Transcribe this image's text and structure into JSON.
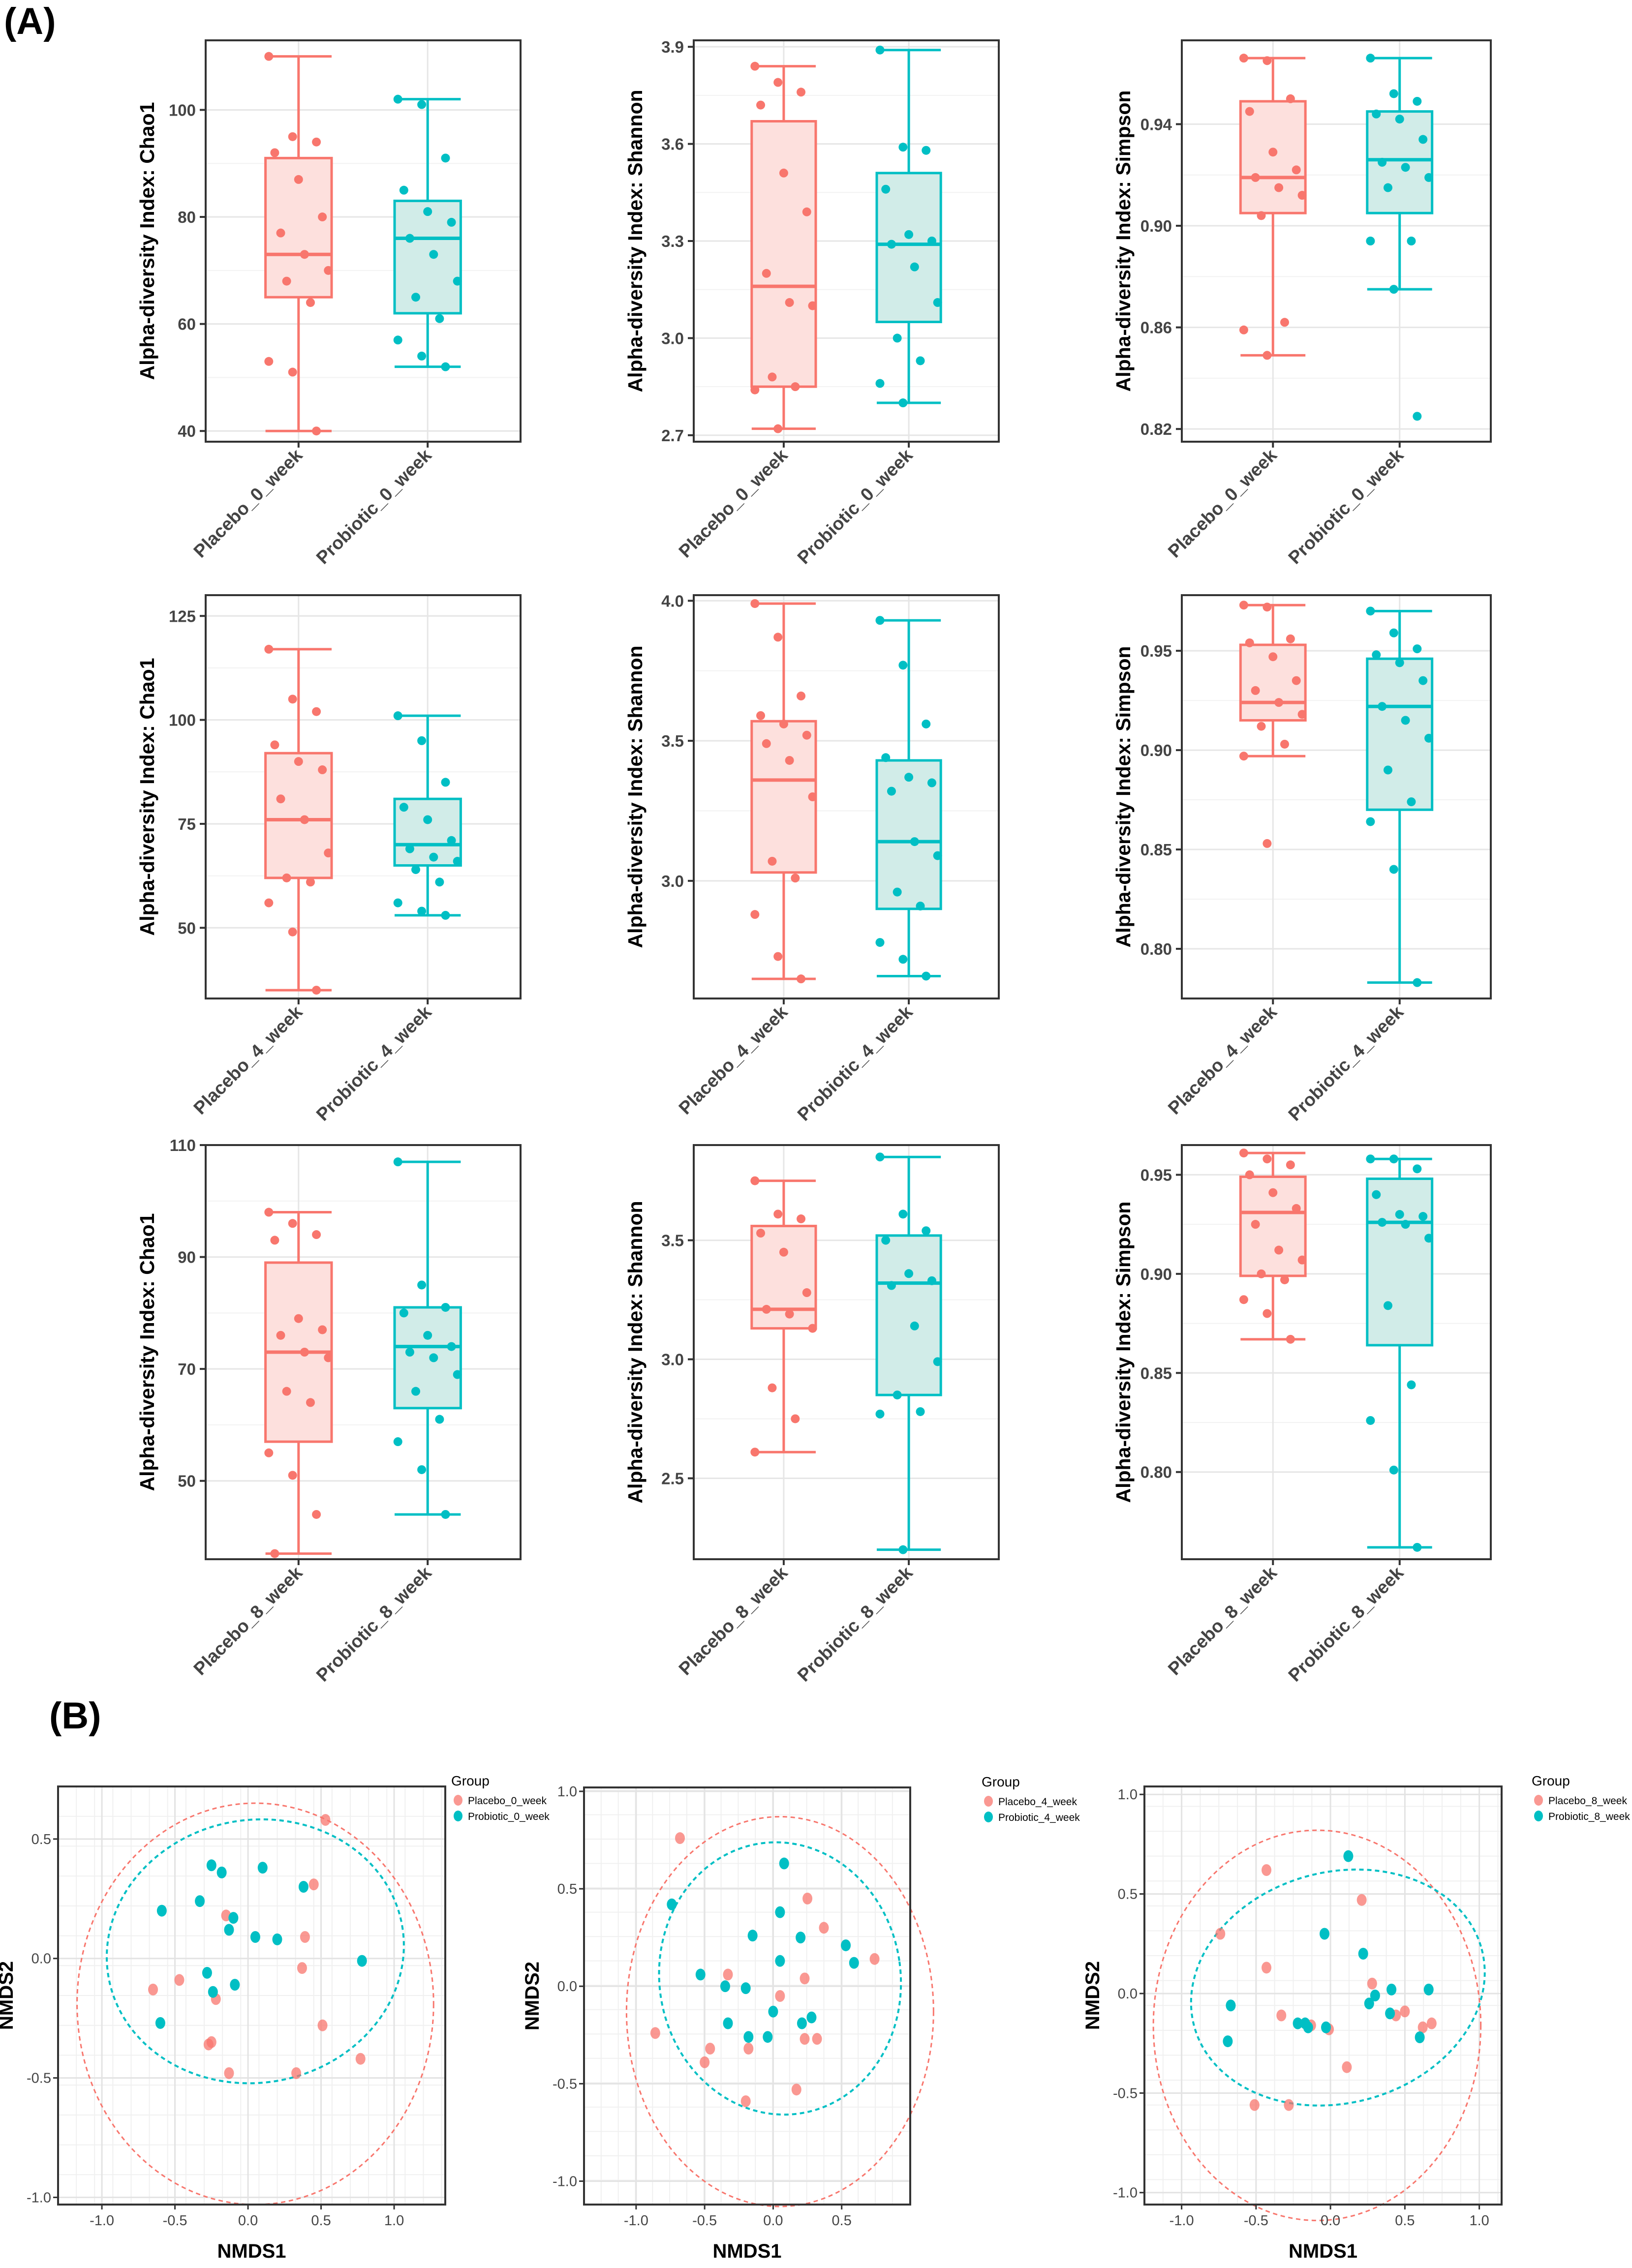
{
  "panels": {
    "a": "(A)",
    "b": "(B)"
  },
  "colors": {
    "placebo": "#F8766D",
    "probiotic": "#00BFC4",
    "placebo_fill": "#FDE0DD",
    "probiotic_fill": "#D1ECE8"
  },
  "chart_data": [
    {
      "type": "box",
      "title": "",
      "ylabel": "Alpha-diversity Index: Chao1",
      "ylim": [
        38,
        113
      ],
      "yticks": [
        40,
        60,
        80,
        100
      ],
      "categories": [
        "Placebo_0_week",
        "Probiotic_0_week"
      ],
      "boxes": [
        {
          "q1": 65,
          "median": 73,
          "q3": 91,
          "min": 40,
          "max": 110,
          "points": [
            110,
            95,
            94,
            92,
            87,
            80,
            77,
            73,
            70,
            68,
            64,
            53,
            51,
            40
          ]
        },
        {
          "q1": 62,
          "median": 76,
          "q3": 83,
          "min": 52,
          "max": 102,
          "points": [
            102,
            101,
            91,
            85,
            81,
            79,
            76,
            73,
            68,
            65,
            61,
            57,
            54,
            52
          ]
        }
      ]
    },
    {
      "type": "box",
      "title": "",
      "ylabel": "Alpha-diversity Index: Shannon",
      "ylim": [
        2.68,
        3.92
      ],
      "yticks": [
        2.7,
        3.0,
        3.3,
        3.6,
        3.9
      ],
      "categories": [
        "Placebo_0_week",
        "Probiotic_0_week"
      ],
      "boxes": [
        {
          "q1": 2.85,
          "median": 3.16,
          "q3": 3.67,
          "min": 2.72,
          "max": 3.84,
          "points": [
            3.84,
            3.79,
            3.76,
            3.72,
            3.51,
            3.39,
            3.2,
            3.11,
            3.1,
            2.88,
            2.85,
            2.84,
            2.72
          ]
        },
        {
          "q1": 3.05,
          "median": 3.29,
          "q3": 3.51,
          "min": 2.8,
          "max": 3.89,
          "points": [
            3.89,
            3.59,
            3.58,
            3.46,
            3.32,
            3.3,
            3.29,
            3.22,
            3.11,
            3.0,
            2.93,
            2.86,
            2.8
          ]
        }
      ]
    },
    {
      "type": "box",
      "title": "",
      "ylabel": "Alpha-diversity Index: Simpson",
      "ylim": [
        0.815,
        0.973
      ],
      "yticks": [
        0.82,
        0.86,
        0.9,
        0.94
      ],
      "categories": [
        "Placebo_0_week",
        "Probiotic_0_week"
      ],
      "boxes": [
        {
          "q1": 0.905,
          "median": 0.919,
          "q3": 0.949,
          "min": 0.849,
          "max": 0.966,
          "points": [
            0.966,
            0.965,
            0.95,
            0.945,
            0.929,
            0.922,
            0.919,
            0.915,
            0.912,
            0.904,
            0.862,
            0.859,
            0.849
          ]
        },
        {
          "q1": 0.905,
          "median": 0.926,
          "q3": 0.945,
          "min": 0.875,
          "max": 0.966,
          "points": [
            0.966,
            0.952,
            0.949,
            0.944,
            0.942,
            0.934,
            0.925,
            0.923,
            0.919,
            0.915,
            0.894,
            0.894,
            0.875,
            0.825
          ]
        }
      ]
    },
    {
      "type": "box",
      "title": "",
      "ylabel": "Alpha-diversity Index: Chao1",
      "ylim": [
        33,
        130
      ],
      "yticks": [
        50,
        75,
        100,
        125
      ],
      "categories": [
        "Placebo_4_week",
        "Probiotic_4_week"
      ],
      "boxes": [
        {
          "q1": 62,
          "median": 76,
          "q3": 92,
          "min": 35,
          "max": 117,
          "points": [
            117,
            105,
            102,
            94,
            90,
            88,
            81,
            76,
            68,
            62,
            61,
            56,
            49,
            35
          ]
        },
        {
          "q1": 65,
          "median": 70,
          "q3": 81,
          "min": 53,
          "max": 101,
          "points": [
            101,
            95,
            85,
            79,
            76,
            71,
            69,
            67,
            66,
            64,
            61,
            56,
            54,
            53
          ]
        }
      ]
    },
    {
      "type": "box",
      "title": "",
      "ylabel": "Alpha-diversity Index: Shannon",
      "ylim": [
        2.58,
        4.02
      ],
      "yticks": [
        3.0,
        3.5,
        4.0
      ],
      "categories": [
        "Placebo_4_week",
        "Probiotic_4_week"
      ],
      "boxes": [
        {
          "q1": 3.03,
          "median": 3.36,
          "q3": 3.57,
          "min": 2.65,
          "max": 3.99,
          "points": [
            3.99,
            3.87,
            3.66,
            3.59,
            3.56,
            3.52,
            3.49,
            3.43,
            3.3,
            3.07,
            3.01,
            2.88,
            2.73,
            2.65
          ]
        },
        {
          "q1": 2.9,
          "median": 3.14,
          "q3": 3.43,
          "min": 2.66,
          "max": 3.93,
          "points": [
            3.93,
            3.77,
            3.56,
            3.44,
            3.37,
            3.35,
            3.32,
            3.14,
            3.09,
            2.96,
            2.91,
            2.78,
            2.72,
            2.66
          ]
        }
      ]
    },
    {
      "type": "box",
      "title": "",
      "ylabel": "Alpha-diversity Index: Simpson",
      "ylim": [
        0.775,
        0.978
      ],
      "yticks": [
        0.8,
        0.85,
        0.9,
        0.95
      ],
      "categories": [
        "Placebo_4_week",
        "Probiotic_4_week"
      ],
      "boxes": [
        {
          "q1": 0.915,
          "median": 0.924,
          "q3": 0.953,
          "min": 0.897,
          "max": 0.973,
          "points": [
            0.973,
            0.972,
            0.956,
            0.954,
            0.947,
            0.935,
            0.93,
            0.924,
            0.918,
            0.912,
            0.903,
            0.897,
            0.853
          ]
        },
        {
          "q1": 0.87,
          "median": 0.922,
          "q3": 0.946,
          "min": 0.783,
          "max": 0.97,
          "points": [
            0.97,
            0.959,
            0.951,
            0.948,
            0.944,
            0.935,
            0.922,
            0.915,
            0.906,
            0.89,
            0.874,
            0.864,
            0.84,
            0.783
          ]
        }
      ]
    },
    {
      "type": "box",
      "title": "",
      "ylabel": "Alpha-diversity Index: Chao1",
      "ylim": [
        36,
        110
      ],
      "yticks": [
        50,
        70,
        90,
        110
      ],
      "categories": [
        "Placebo_8_week",
        "Probiotic_8_week"
      ],
      "boxes": [
        {
          "q1": 57,
          "median": 73,
          "q3": 89,
          "min": 37,
          "max": 98,
          "points": [
            98,
            96,
            94,
            93,
            79,
            77,
            76,
            73,
            72,
            66,
            64,
            55,
            51,
            44,
            37
          ]
        },
        {
          "q1": 63,
          "median": 74,
          "q3": 81,
          "min": 44,
          "max": 107,
          "points": [
            107,
            85,
            81,
            80,
            76,
            74,
            73,
            72,
            69,
            66,
            61,
            57,
            52,
            44
          ]
        }
      ]
    },
    {
      "type": "box",
      "title": "",
      "ylabel": "Alpha-diversity Index: Shannon",
      "ylim": [
        2.16,
        3.9
      ],
      "yticks": [
        2.5,
        3.0,
        3.5
      ],
      "categories": [
        "Placebo_8_week",
        "Probiotic_8_week"
      ],
      "boxes": [
        {
          "q1": 3.13,
          "median": 3.21,
          "q3": 3.56,
          "min": 2.61,
          "max": 3.75,
          "points": [
            3.75,
            3.61,
            3.59,
            3.53,
            3.45,
            3.28,
            3.21,
            3.19,
            3.13,
            2.88,
            2.75,
            2.61
          ]
        },
        {
          "q1": 2.85,
          "median": 3.32,
          "q3": 3.52,
          "min": 2.2,
          "max": 3.85,
          "points": [
            3.85,
            3.61,
            3.54,
            3.5,
            3.36,
            3.33,
            3.31,
            3.14,
            2.99,
            2.85,
            2.78,
            2.77,
            2.2
          ]
        }
      ]
    },
    {
      "type": "box",
      "title": "",
      "ylabel": "Alpha-diversity Index: Simpson",
      "ylim": [
        0.756,
        0.965
      ],
      "yticks": [
        0.8,
        0.85,
        0.9,
        0.95
      ],
      "categories": [
        "Placebo_8_week",
        "Probiotic_8_week"
      ],
      "boxes": [
        {
          "q1": 0.899,
          "median": 0.931,
          "q3": 0.949,
          "min": 0.867,
          "max": 0.961,
          "points": [
            0.961,
            0.958,
            0.955,
            0.95,
            0.941,
            0.933,
            0.925,
            0.912,
            0.907,
            0.9,
            0.897,
            0.887,
            0.88,
            0.867
          ]
        },
        {
          "q1": 0.864,
          "median": 0.926,
          "q3": 0.948,
          "min": 0.762,
          "max": 0.958,
          "points": [
            0.958,
            0.958,
            0.953,
            0.94,
            0.93,
            0.929,
            0.926,
            0.925,
            0.918,
            0.884,
            0.844,
            0.826,
            0.801,
            0.762
          ]
        }
      ]
    },
    {
      "type": "scatter",
      "xlabel": "NMDS1",
      "ylabel": "NMDS2",
      "xlim": [
        -1.3,
        1.35
      ],
      "ylim": [
        -1.03,
        0.72
      ],
      "xticks": [
        -1.0,
        -0.5,
        0.0,
        0.5,
        1.0
      ],
      "yticks": [
        -1.0,
        -0.5,
        0.0,
        0.5
      ],
      "legend_title": "Group",
      "legend": [
        "Placebo_0_week",
        "Probiotic_0_week"
      ],
      "ellipses": [
        {
          "series": 0,
          "cx": 0.05,
          "cy": -0.19,
          "rx": 1.22,
          "ry": 0.84,
          "angle": 0
        },
        {
          "series": 1,
          "cx": 0.05,
          "cy": 0.03,
          "rx": 1.02,
          "ry": 0.55,
          "angle": -10
        }
      ],
      "series": [
        {
          "name": "Placebo_0_week",
          "x": [
            0.53,
            0.45,
            -0.15,
            0.39,
            0.37,
            -0.65,
            -0.47,
            -0.22,
            -0.27,
            -0.13,
            -0.25,
            0.51,
            0.77,
            0.33
          ],
          "y": [
            0.58,
            0.31,
            0.18,
            0.09,
            -0.04,
            -0.13,
            -0.09,
            -0.17,
            -0.36,
            -0.48,
            -0.35,
            -0.28,
            -0.42,
            -0.48
          ]
        },
        {
          "name": "Probiotic_0_week",
          "x": [
            -0.25,
            -0.18,
            0.1,
            0.38,
            -0.59,
            -0.33,
            -0.1,
            -0.13,
            0.05,
            0.2,
            0.78,
            -0.28,
            -0.09,
            -0.24,
            -0.6
          ],
          "y": [
            0.39,
            0.36,
            0.38,
            0.3,
            0.2,
            0.24,
            0.17,
            0.12,
            0.09,
            0.08,
            -0.01,
            -0.06,
            -0.11,
            -0.14,
            -0.27
          ]
        }
      ]
    },
    {
      "type": "scatter",
      "xlabel": "NMDS1",
      "ylabel": "NMDS2",
      "xlim": [
        -1.38,
        1.0
      ],
      "ylim": [
        -1.12,
        1.02
      ],
      "xticks": [
        -1.0,
        -0.5,
        0.0,
        0.5
      ],
      "yticks": [
        -1.0,
        -0.5,
        0.0,
        0.5,
        1.0
      ],
      "legend_title": "Group",
      "legend": [
        "Placebo_4_week",
        "Probiotic_4_week"
      ],
      "ellipses": [
        {
          "series": 0,
          "cx": 0.05,
          "cy": -0.13,
          "rx": 1.12,
          "ry": 1.0,
          "angle": 0
        },
        {
          "series": 1,
          "cx": 0.05,
          "cy": 0.04,
          "rx": 0.88,
          "ry": 0.7,
          "angle": -8
        }
      ],
      "series": [
        {
          "name": "Placebo_4_week",
          "x": [
            -0.68,
            0.25,
            0.37,
            0.74,
            -0.33,
            0.23,
            0.05,
            0.23,
            -0.86,
            -0.46,
            0.32,
            -0.18,
            -0.5,
            0.17,
            -0.2
          ],
          "y": [
            0.76,
            0.45,
            0.3,
            0.14,
            0.06,
            0.04,
            -0.05,
            -0.27,
            -0.24,
            -0.32,
            -0.27,
            -0.32,
            -0.39,
            -0.53,
            -0.59
          ]
        },
        {
          "name": "Probiotic_4_week",
          "x": [
            0.08,
            -0.74,
            0.05,
            -0.15,
            0.2,
            0.53,
            -0.53,
            0.05,
            0.59,
            -0.35,
            -0.2,
            0.0,
            0.28,
            0.21,
            -0.33,
            -0.18,
            -0.04
          ],
          "y": [
            0.63,
            0.42,
            0.38,
            0.26,
            0.25,
            0.21,
            0.06,
            0.13,
            0.12,
            0.0,
            -0.01,
            -0.13,
            -0.16,
            -0.19,
            -0.19,
            -0.26,
            -0.26
          ]
        }
      ]
    },
    {
      "type": "scatter",
      "xlabel": "NMDS1",
      "ylabel": "NMDS2",
      "xlim": [
        -1.25,
        1.15
      ],
      "ylim": [
        -1.06,
        1.04
      ],
      "xticks": [
        -1.0,
        -0.5,
        0.0,
        0.5,
        1.0
      ],
      "yticks": [
        -1.0,
        -0.5,
        0.0,
        0.5,
        1.0
      ],
      "legend_title": "Group",
      "legend": [
        "Placebo_8_week",
        "Probiotic_8_week"
      ],
      "ellipses": [
        {
          "series": 0,
          "cx": -0.09,
          "cy": -0.16,
          "rx": 1.1,
          "ry": 0.98,
          "angle": 0
        },
        {
          "series": 1,
          "cx": 0.05,
          "cy": 0.03,
          "rx": 1.0,
          "ry": 0.58,
          "angle": -15
        }
      ],
      "series": [
        {
          "name": "Placebo_8_week",
          "x": [
            -0.43,
            0.21,
            -0.74,
            -0.43,
            0.28,
            0.5,
            -0.33,
            0.44,
            0.62,
            0.68,
            -0.13,
            -0.01,
            0.11,
            -0.28,
            -0.51
          ],
          "y": [
            0.62,
            0.47,
            0.3,
            0.13,
            0.05,
            -0.09,
            -0.11,
            -0.11,
            -0.17,
            -0.15,
            -0.16,
            -0.18,
            -0.37,
            -0.56,
            -0.56
          ]
        },
        {
          "name": "Probiotic_8_week",
          "x": [
            0.12,
            -0.04,
            0.22,
            0.3,
            0.41,
            0.66,
            -0.67,
            -0.22,
            0.26,
            -0.15,
            0.4,
            0.6,
            -0.69,
            -0.03,
            -0.17
          ],
          "y": [
            0.69,
            0.3,
            0.2,
            -0.01,
            0.02,
            0.02,
            -0.06,
            -0.15,
            -0.05,
            -0.17,
            -0.1,
            -0.22,
            -0.24,
            -0.17,
            -0.15
          ]
        }
      ]
    }
  ]
}
